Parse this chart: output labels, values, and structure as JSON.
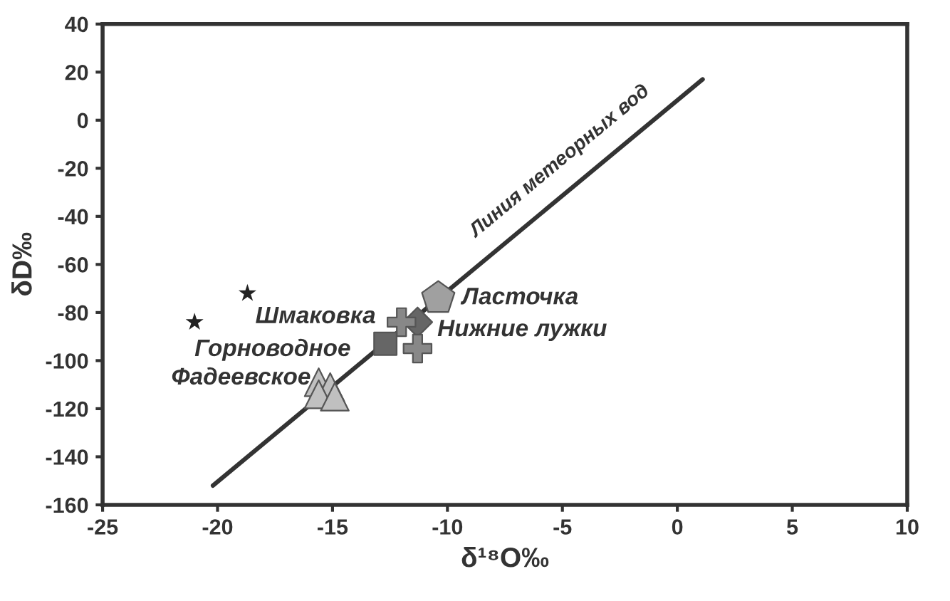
{
  "chart_data": {
    "type": "scatter",
    "xlabel": "δ¹⁸O‰",
    "ylabel": "δD‰",
    "xlim": [
      -25,
      10
    ],
    "ylim": [
      -160,
      40
    ],
    "xticks": [
      -25,
      -20,
      -15,
      -10,
      -5,
      0,
      5,
      10
    ],
    "yticks": [
      -160,
      -140,
      -120,
      -100,
      -80,
      -60,
      -40,
      -20,
      0,
      20,
      40
    ],
    "grid": false,
    "legend": false,
    "series": [
      {
        "type": "line",
        "name": "Линия метеорных вод",
        "color": "#333333",
        "marker": "none",
        "line_style": "solid",
        "x": [
          -20.2,
          1.1
        ],
        "values": [
          -152,
          17
        ]
      },
      {
        "name": "Шмаковка",
        "color": "#222222",
        "marker": "star",
        "x": [
          -18.7
        ],
        "values": [
          -72
        ]
      },
      {
        "name": "Горноводное",
        "color": "#222222",
        "marker": "star",
        "x": [
          -21.0
        ],
        "values": [
          -84
        ]
      },
      {
        "name": "Ласточка",
        "color": "#a0a0a0",
        "x": [
          -10.4
        ],
        "values": [
          -74
        ]
      },
      {
        "name": "Нижние лужки",
        "color": "#666666",
        "marker": "diamond",
        "x": [
          -11.3
        ],
        "values": [
          -84
        ]
      },
      {
        "color": "#888888",
        "marker": "cross",
        "x": [
          -12.0,
          -11.3
        ],
        "values": [
          -84,
          -95
        ]
      },
      {
        "color": "#666666",
        "marker": "square",
        "x": [
          -12.7
        ],
        "values": [
          -93
        ]
      },
      {
        "name": "Фадеевское",
        "color": "#c0c0c0",
        "marker": "triangle",
        "x": [
          -15.6,
          -15.1,
          -15.6,
          -14.9
        ],
        "values": [
          -109,
          -111,
          -114,
          -115
        ]
      }
    ]
  }
}
